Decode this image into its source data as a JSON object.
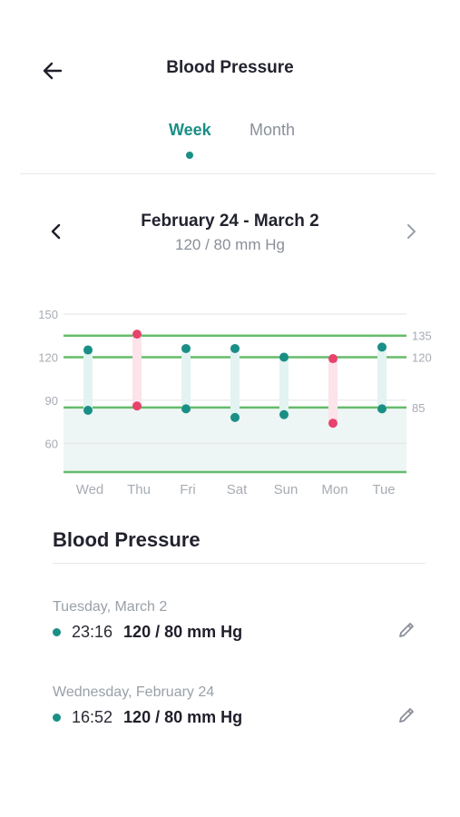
{
  "header": {
    "title": "Blood Pressure",
    "back_icon": "arrow-left-icon"
  },
  "tabs": [
    {
      "label": "Week",
      "selected": true
    },
    {
      "label": "Month",
      "selected": false
    }
  ],
  "range": {
    "title": "February 24 - March 2",
    "subtitle": "120 / 80 mm Hg",
    "prev_icon": "chevron-left-icon",
    "next_icon": "chevron-right-icon"
  },
  "chart_data": {
    "type": "range-bar",
    "categories": [
      "Wed",
      "Thu",
      "Fri",
      "Sat",
      "Sun",
      "Mon",
      "Tue"
    ],
    "systolic": [
      125,
      136,
      126,
      126,
      120,
      119,
      127
    ],
    "diastolic": [
      83,
      86,
      84,
      78,
      80,
      74,
      84
    ],
    "in_range": [
      true,
      false,
      true,
      true,
      true,
      false,
      true
    ],
    "left_ticks": [
      150,
      120,
      90,
      60
    ],
    "right_ticks": [
      135,
      120,
      85
    ],
    "ylim": [
      40,
      150
    ],
    "shaded_band": [
      40,
      85
    ],
    "colors": {
      "normal": "#1a8f85",
      "alert": "#e8436d",
      "normal_bar": "#e3f3f2",
      "alert_bar": "#fde3ea",
      "threshold_line": "#66bb6a",
      "band": "#edf6f5"
    }
  },
  "list": {
    "title": "Blood Pressure",
    "entries": [
      {
        "date": "Tuesday, March 2",
        "time": "23:16",
        "value": "120 / 80 mm Hg",
        "edit_icon": "pencil-icon"
      },
      {
        "date": "Wednesday, February 24",
        "time": "16:52",
        "value": "120 / 80 mm Hg",
        "edit_icon": "pencil-icon"
      }
    ]
  }
}
